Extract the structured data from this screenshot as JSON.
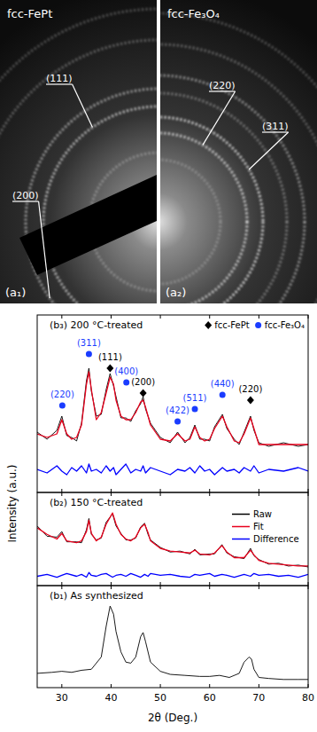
{
  "diffraction_patterns": [
    {
      "panel": "(a₁)",
      "phase": "fcc-FePt",
      "rings": [
        "(111)",
        "(200)"
      ]
    },
    {
      "panel": "(a₂)",
      "phase": "fcc-Fe₃O₄",
      "rings": [
        "(220)",
        "(311)"
      ]
    }
  ],
  "chart_data": [
    {
      "type": "line",
      "title": "(b₃) 200 °C-treated",
      "x": [
        25,
        27,
        29,
        30,
        31,
        32,
        33,
        34,
        35,
        35.5,
        36,
        37,
        38,
        39,
        39.8,
        40.5,
        41,
        42,
        43,
        44,
        45,
        46,
        46.5,
        47,
        48,
        50,
        52,
        53.5,
        55,
        56,
        57,
        58,
        59,
        60,
        61,
        62.6,
        63.5,
        65,
        66,
        67,
        68.3,
        69,
        70,
        72,
        75,
        78,
        80
      ],
      "series": [
        {
          "name": "Raw",
          "color": "#000000",
          "values": [
            34,
            30,
            35,
            43,
            32,
            31,
            29,
            39,
            63,
            70,
            57,
            43,
            44,
            58,
            67,
            60,
            54,
            42,
            42,
            40,
            46,
            50,
            54,
            47,
            39,
            31,
            28,
            34,
            28,
            31,
            38,
            30,
            30,
            29,
            37,
            44,
            36,
            30,
            27,
            34,
            43,
            35,
            28,
            26,
            28,
            26,
            27
          ]
        },
        {
          "name": "Fit",
          "color": "#e8001c",
          "values": [
            33,
            31,
            33,
            41,
            33,
            30,
            31,
            38,
            61,
            68,
            58,
            41,
            45,
            56,
            65,
            61,
            52,
            43,
            41,
            41,
            45,
            51,
            52,
            48,
            38,
            30,
            29,
            33,
            29,
            30,
            37,
            31,
            29,
            30,
            36,
            43,
            37,
            29,
            28,
            33,
            42,
            36,
            27,
            27,
            27,
            27,
            27
          ]
        },
        {
          "name": "Difference",
          "color": "#0000ff",
          "values": [
            13,
            11,
            15,
            12,
            10,
            14,
            12,
            15,
            11,
            16,
            12,
            13,
            11,
            15,
            12,
            14,
            10,
            13,
            16,
            11,
            13,
            12,
            15,
            11,
            14,
            12,
            10,
            13,
            12,
            14,
            11,
            15,
            12,
            13,
            10,
            14,
            12,
            13,
            11,
            14,
            12,
            15,
            11,
            13,
            12,
            14,
            12
          ]
        }
      ],
      "xlim": [
        25,
        80
      ],
      "ylim": [
        0,
        100
      ],
      "xticks": [
        30,
        40,
        50,
        60,
        70,
        80
      ],
      "tick_labels": false,
      "legend": "top-right",
      "annotations": [
        {
          "name": "fcc-FePt",
          "color": "#000000",
          "marker": "diamond",
          "points": [
            {
              "x": 39.8,
              "y": 70,
              "label": "(111)"
            },
            {
              "x": 46.5,
              "y": 56,
              "label": "(200)"
            },
            {
              "x": 68.3,
              "y": 52,
              "label": "(220)"
            }
          ]
        },
        {
          "name": "fcc-Fe₃O₄",
          "color": "#1a3cff",
          "marker": "circle",
          "points": [
            {
              "x": 30.1,
              "y": 49,
              "label": "(220)"
            },
            {
              "x": 35.5,
              "y": 78,
              "label": "(311)"
            },
            {
              "x": 43.1,
              "y": 62,
              "label": "(400)"
            },
            {
              "x": 53.5,
              "y": 40,
              "label": "(422)"
            },
            {
              "x": 57,
              "y": 47,
              "label": "(511)"
            },
            {
              "x": 62.6,
              "y": 55,
              "label": "(440)"
            }
          ]
        }
      ]
    },
    {
      "type": "line",
      "title": "(b₂) 150 °C-treated",
      "ylabel": "Intensity (a.u.)",
      "x": [
        25,
        27,
        29,
        30,
        31,
        33,
        34,
        35,
        35.5,
        36,
        37,
        38,
        39,
        40.3,
        41,
        42,
        43,
        44,
        45,
        46,
        46.8,
        47.5,
        48,
        50,
        52,
        54,
        56,
        57,
        58,
        60,
        61,
        62.5,
        63.5,
        65,
        67,
        68.3,
        69,
        70,
        72,
        74,
        76,
        78,
        80
      ],
      "series": [
        {
          "name": "Raw",
          "color": "#000000",
          "values": [
            64,
            53,
            52,
            58,
            47,
            47,
            46,
            60,
            72,
            55,
            49,
            51,
            68,
            77,
            64,
            56,
            49,
            49,
            51,
            63,
            67,
            55,
            49,
            41,
            36,
            37,
            34,
            39,
            33,
            34,
            34,
            44,
            35,
            31,
            29,
            40,
            32,
            28,
            23,
            24,
            21,
            22,
            20
          ]
        },
        {
          "name": "Fit",
          "color": "#e8001c",
          "values": [
            62,
            55,
            50,
            56,
            48,
            46,
            48,
            58,
            70,
            56,
            48,
            52,
            66,
            78,
            66,
            55,
            50,
            48,
            52,
            62,
            66,
            57,
            48,
            40,
            37,
            36,
            35,
            38,
            34,
            33,
            35,
            43,
            36,
            30,
            30,
            38,
            33,
            27,
            24,
            23,
            22,
            21,
            21
          ]
        },
        {
          "name": "Difference",
          "color": "#0000ff",
          "values": [
            10,
            12,
            9,
            11,
            13,
            10,
            12,
            9,
            14,
            11,
            10,
            12,
            13,
            9,
            11,
            12,
            10,
            13,
            11,
            9,
            12,
            10,
            13,
            11,
            12,
            10,
            9,
            12,
            11,
            13,
            10,
            12,
            11,
            9,
            12,
            10,
            13,
            11,
            12,
            10,
            11,
            9,
            12
          ]
        }
      ],
      "xlim": [
        25,
        80
      ],
      "ylim": [
        0,
        100
      ],
      "xticks": [
        30,
        40,
        50,
        60,
        70,
        80
      ],
      "tick_labels": false,
      "legend": "right"
    },
    {
      "type": "line",
      "title": "(b₁) As synthesized",
      "xlabel": "2θ (Deg.)",
      "x": [
        25,
        28,
        30,
        32,
        34,
        36,
        38,
        39,
        39.8,
        40.5,
        41,
        42,
        43,
        44,
        45,
        46,
        46.5,
        47,
        48,
        50,
        52,
        55,
        58,
        60,
        62,
        64,
        66,
        67,
        68,
        68.5,
        69,
        70,
        72,
        75,
        78,
        80
      ],
      "series": [
        {
          "name": "Raw",
          "color": "#000000",
          "values": [
            14,
            15,
            16,
            15,
            17,
            18,
            30,
            60,
            80,
            72,
            55,
            35,
            25,
            24,
            30,
            50,
            54,
            45,
            25,
            16,
            13,
            12,
            11,
            11,
            12,
            10,
            14,
            25,
            30,
            28,
            18,
            10,
            9,
            8,
            8,
            8
          ]
        }
      ],
      "xlim": [
        25,
        80
      ],
      "ylim": [
        0,
        100
      ],
      "xticks": [
        30,
        40,
        50,
        60,
        70,
        80
      ],
      "tick_labels": "x"
    }
  ]
}
